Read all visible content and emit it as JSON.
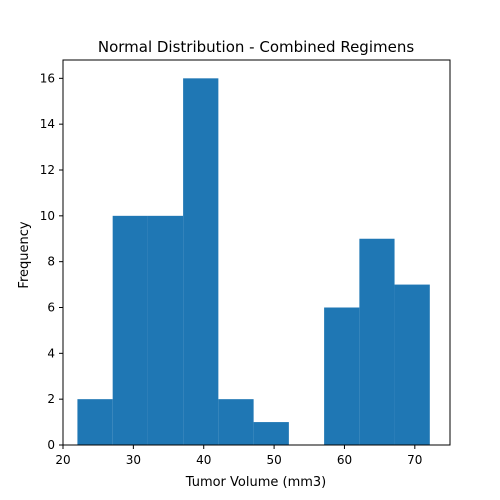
{
  "chart_data": {
    "type": "bar",
    "title": "Normal Distribution - Combined Regimens",
    "xlabel": "Tumor Volume (mm3)",
    "ylabel": "Frequency",
    "xlim": [
      20,
      75
    ],
    "ylim": [
      0,
      16.8
    ],
    "xticks": [
      20,
      30,
      40,
      50,
      60,
      70
    ],
    "yticks": [
      0,
      2,
      4,
      6,
      8,
      10,
      12,
      14,
      16
    ],
    "bin_edges": [
      22.05,
      27.06,
      32.07,
      37.07,
      42.08,
      47.09,
      52.1,
      57.11,
      62.12,
      67.12,
      72.13
    ],
    "values": [
      2,
      10,
      10,
      16,
      2,
      1,
      0,
      6,
      9,
      7
    ],
    "bar_color": "#1f77b4",
    "grid": false,
    "legend": "none"
  }
}
